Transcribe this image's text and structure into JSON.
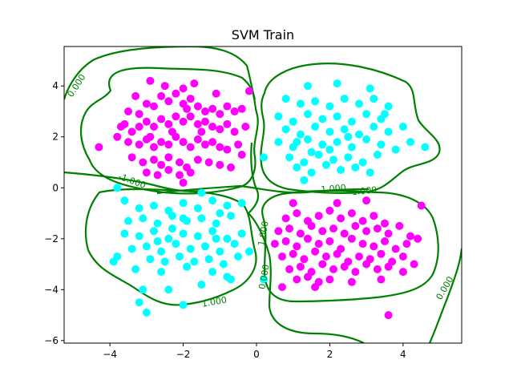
{
  "chart_data": {
    "type": "scatter",
    "title": "SVM Train",
    "xlabel": "",
    "ylabel": "",
    "xlim": [
      -5.25,
      5.6
    ],
    "ylim": [
      -6.1,
      5.55
    ],
    "xticks": [
      -4,
      -2,
      0,
      2,
      4
    ],
    "yticks": [
      -6,
      -4,
      -2,
      0,
      2,
      4
    ],
    "xtick_labels": [
      "−4",
      "−2",
      "0",
      "2",
      "4"
    ],
    "ytick_labels": [
      "−6",
      "−4",
      "−2",
      "0",
      "2",
      "4"
    ],
    "grid": false,
    "legend": "none",
    "colors": {
      "class_a": "#ff00ff",
      "class_b": "#00ffff",
      "contour": "#008000",
      "axes": "#000000"
    },
    "series": [
      {
        "color": "#ff00ff",
        "points": [
          [
            -3.5,
            3.0
          ],
          [
            -3.2,
            2.9
          ],
          [
            -3.0,
            3.3
          ],
          [
            -2.8,
            3.2
          ],
          [
            -2.6,
            3.6
          ],
          [
            -2.4,
            3.4
          ],
          [
            -2.2,
            3.7
          ],
          [
            -2.0,
            3.3
          ],
          [
            -1.8,
            3.5
          ],
          [
            -1.6,
            3.2
          ],
          [
            -1.4,
            3.0
          ],
          [
            -1.2,
            3.1
          ],
          [
            -1.0,
            2.9
          ],
          [
            -0.8,
            3.2
          ],
          [
            -0.6,
            3.0
          ],
          [
            -0.4,
            3.1
          ],
          [
            -0.2,
            3.8
          ],
          [
            -3.6,
            2.5
          ],
          [
            -3.4,
            2.2
          ],
          [
            -3.2,
            2.4
          ],
          [
            -3.0,
            2.6
          ],
          [
            -2.8,
            2.4
          ],
          [
            -2.6,
            2.7
          ],
          [
            -2.4,
            2.5
          ],
          [
            -2.2,
            2.8
          ],
          [
            -2.0,
            2.6
          ],
          [
            -1.8,
            2.8
          ],
          [
            -1.6,
            2.5
          ],
          [
            -1.4,
            2.6
          ],
          [
            -1.2,
            2.4
          ],
          [
            -1.0,
            2.3
          ],
          [
            -0.8,
            2.5
          ],
          [
            -0.6,
            2.2
          ],
          [
            -3.8,
            2.0
          ],
          [
            -3.5,
            1.8
          ],
          [
            -3.2,
            1.7
          ],
          [
            -3.0,
            1.9
          ],
          [
            -2.8,
            1.6
          ],
          [
            -2.6,
            1.8
          ],
          [
            -2.4,
            1.7
          ],
          [
            -2.2,
            2.0
          ],
          [
            -2.0,
            1.8
          ],
          [
            -1.8,
            1.6
          ],
          [
            -1.6,
            1.9
          ],
          [
            -1.4,
            1.7
          ],
          [
            -1.2,
            1.8
          ],
          [
            -1.0,
            1.6
          ],
          [
            -0.8,
            1.5
          ],
          [
            -0.5,
            1.7
          ],
          [
            -4.3,
            1.6
          ],
          [
            -3.4,
            1.2
          ],
          [
            -3.1,
            1.0
          ],
          [
            -2.8,
            1.1
          ],
          [
            -2.6,
            0.9
          ],
          [
            -2.4,
            1.2
          ],
          [
            -2.1,
            1.0
          ],
          [
            -1.9,
            0.8
          ],
          [
            -1.6,
            1.1
          ],
          [
            -1.3,
            1.0
          ],
          [
            -1.0,
            0.9
          ],
          [
            -0.7,
            0.8
          ],
          [
            -3.0,
            0.6
          ],
          [
            -2.7,
            0.5
          ],
          [
            -2.4,
            0.7
          ],
          [
            -2.1,
            0.5
          ],
          [
            -1.8,
            0.6
          ],
          [
            -2.5,
            4.0
          ],
          [
            -2.0,
            3.9
          ],
          [
            -1.7,
            4.1
          ],
          [
            -2.9,
            4.2
          ],
          [
            -3.3,
            3.6
          ],
          [
            -1.1,
            3.7
          ],
          [
            -0.4,
            1.3
          ],
          [
            -2.3,
            2.2
          ],
          [
            -1.5,
            2.2
          ],
          [
            -2.9,
            2.0
          ],
          [
            -3.7,
            2.4
          ],
          [
            -0.3,
            2.4
          ],
          [
            -2.0,
            0.2
          ],
          [
            -1.9,
            3.1
          ],
          [
            0.8,
            -1.2
          ],
          [
            1.1,
            -1.0
          ],
          [
            1.4,
            -1.3
          ],
          [
            1.7,
            -1.1
          ],
          [
            2.0,
            -0.9
          ],
          [
            2.3,
            -1.2
          ],
          [
            2.6,
            -1.0
          ],
          [
            2.9,
            -1.3
          ],
          [
            3.2,
            -1.1
          ],
          [
            3.5,
            -1.4
          ],
          [
            0.6,
            -1.7
          ],
          [
            0.9,
            -1.6
          ],
          [
            1.2,
            -1.8
          ],
          [
            1.5,
            -1.5
          ],
          [
            1.8,
            -1.7
          ],
          [
            2.1,
            -1.6
          ],
          [
            2.4,
            -1.8
          ],
          [
            2.7,
            -1.5
          ],
          [
            3.0,
            -1.7
          ],
          [
            3.3,
            -1.6
          ],
          [
            3.6,
            -1.8
          ],
          [
            3.9,
            -1.5
          ],
          [
            4.2,
            -1.9
          ],
          [
            4.5,
            -0.7
          ],
          [
            0.5,
            -2.2
          ],
          [
            0.8,
            -2.1
          ],
          [
            1.1,
            -2.3
          ],
          [
            1.4,
            -2.0
          ],
          [
            1.7,
            -2.2
          ],
          [
            2.0,
            -2.1
          ],
          [
            2.3,
            -2.4
          ],
          [
            2.6,
            -2.0
          ],
          [
            2.9,
            -2.2
          ],
          [
            3.2,
            -2.3
          ],
          [
            3.5,
            -2.1
          ],
          [
            3.8,
            -2.4
          ],
          [
            4.1,
            -2.2
          ],
          [
            4.4,
            -2.0
          ],
          [
            0.7,
            -2.7
          ],
          [
            1.0,
            -2.6
          ],
          [
            1.3,
            -2.8
          ],
          [
            1.6,
            -2.5
          ],
          [
            1.9,
            -2.7
          ],
          [
            2.2,
            -2.6
          ],
          [
            2.5,
            -2.9
          ],
          [
            2.8,
            -2.7
          ],
          [
            3.1,
            -2.8
          ],
          [
            3.4,
            -2.6
          ],
          [
            3.7,
            -2.9
          ],
          [
            4.0,
            -2.7
          ],
          [
            4.3,
            -3.0
          ],
          [
            0.9,
            -3.2
          ],
          [
            1.2,
            -3.1
          ],
          [
            1.5,
            -3.3
          ],
          [
            1.8,
            -3.0
          ],
          [
            2.1,
            -3.2
          ],
          [
            2.4,
            -3.1
          ],
          [
            2.7,
            -3.3
          ],
          [
            3.0,
            -3.0
          ],
          [
            3.3,
            -3.2
          ],
          [
            3.6,
            -3.1
          ],
          [
            4.0,
            -3.3
          ],
          [
            1.1,
            -3.6
          ],
          [
            1.4,
            -3.5
          ],
          [
            1.7,
            -3.7
          ],
          [
            2.0,
            -3.6
          ],
          [
            2.6,
            -3.7
          ],
          [
            3.4,
            -3.6
          ],
          [
            0.7,
            -3.9
          ],
          [
            1.6,
            -3.9
          ],
          [
            3.6,
            -5.0
          ],
          [
            2.2,
            -0.6
          ],
          [
            3.0,
            -0.5
          ],
          [
            1.0,
            -0.6
          ]
        ]
      },
      {
        "color": "#00ffff",
        "points": [
          [
            1.4,
            4.0
          ],
          [
            2.2,
            4.1
          ],
          [
            3.1,
            3.9
          ],
          [
            0.8,
            3.5
          ],
          [
            1.2,
            3.3
          ],
          [
            1.6,
            3.4
          ],
          [
            2.0,
            3.2
          ],
          [
            2.4,
            3.5
          ],
          [
            2.8,
            3.3
          ],
          [
            3.2,
            3.5
          ],
          [
            3.6,
            3.2
          ],
          [
            0.6,
            2.8
          ],
          [
            1.0,
            2.6
          ],
          [
            1.4,
            2.9
          ],
          [
            1.8,
            2.7
          ],
          [
            2.2,
            2.8
          ],
          [
            2.6,
            2.6
          ],
          [
            3.0,
            2.9
          ],
          [
            3.4,
            2.7
          ],
          [
            0.8,
            2.3
          ],
          [
            1.2,
            2.1
          ],
          [
            1.6,
            2.4
          ],
          [
            2.0,
            2.2
          ],
          [
            2.4,
            2.3
          ],
          [
            2.8,
            2.1
          ],
          [
            3.2,
            2.4
          ],
          [
            3.6,
            2.2
          ],
          [
            0.6,
            1.8
          ],
          [
            1.0,
            1.6
          ],
          [
            1.4,
            1.9
          ],
          [
            1.8,
            1.7
          ],
          [
            2.2,
            1.8
          ],
          [
            2.6,
            1.6
          ],
          [
            3.0,
            1.9
          ],
          [
            3.4,
            1.7
          ],
          [
            3.8,
            1.5
          ],
          [
            0.9,
            1.2
          ],
          [
            1.3,
            1.0
          ],
          [
            1.7,
            1.3
          ],
          [
            2.1,
            1.1
          ],
          [
            2.5,
            1.2
          ],
          [
            2.9,
            1.0
          ],
          [
            3.3,
            1.3
          ],
          [
            1.1,
            0.8
          ],
          [
            1.5,
            0.6
          ],
          [
            1.9,
            0.9
          ],
          [
            2.3,
            0.7
          ],
          [
            2.7,
            0.8
          ],
          [
            3.1,
            0.6
          ],
          [
            1.3,
            0.3
          ],
          [
            0.2,
            1.2
          ],
          [
            4.2,
            1.8
          ],
          [
            4.6,
            1.6
          ],
          [
            4.0,
            2.4
          ],
          [
            3.5,
            2.9
          ],
          [
            1.5,
            1.4
          ],
          [
            2.0,
            1.5
          ],
          [
            1.1,
            1.8
          ],
          [
            2.5,
            2.0
          ],
          [
            -3.8,
            0.0
          ],
          [
            -3.6,
            -0.5
          ],
          [
            -3.2,
            -0.8
          ],
          [
            -2.8,
            -0.7
          ],
          [
            -2.4,
            -0.9
          ],
          [
            -2.0,
            -0.6
          ],
          [
            -1.6,
            -0.8
          ],
          [
            -1.2,
            -0.5
          ],
          [
            -0.8,
            -0.7
          ],
          [
            -0.4,
            -0.6
          ],
          [
            -3.5,
            -1.3
          ],
          [
            -3.1,
            -1.2
          ],
          [
            -2.7,
            -1.4
          ],
          [
            -2.3,
            -1.1
          ],
          [
            -1.9,
            -1.3
          ],
          [
            -1.5,
            -1.2
          ],
          [
            -1.1,
            -1.4
          ],
          [
            -0.7,
            -1.1
          ],
          [
            -3.6,
            -1.8
          ],
          [
            -3.2,
            -1.9
          ],
          [
            -2.8,
            -1.7
          ],
          [
            -2.4,
            -2.0
          ],
          [
            -2.0,
            -1.8
          ],
          [
            -1.6,
            -1.9
          ],
          [
            -1.2,
            -1.7
          ],
          [
            -0.8,
            -2.0
          ],
          [
            -0.4,
            -1.8
          ],
          [
            -3.4,
            -2.4
          ],
          [
            -3.0,
            -2.3
          ],
          [
            -2.6,
            -2.5
          ],
          [
            -2.2,
            -2.2
          ],
          [
            -1.8,
            -2.4
          ],
          [
            -1.4,
            -2.3
          ],
          [
            -1.0,
            -2.5
          ],
          [
            -0.6,
            -2.2
          ],
          [
            -3.8,
            -2.7
          ],
          [
            -2.9,
            -2.8
          ],
          [
            -2.5,
            -2.9
          ],
          [
            -2.1,
            -2.7
          ],
          [
            -1.7,
            -2.9
          ],
          [
            -1.3,
            -2.8
          ],
          [
            -0.9,
            -3.0
          ],
          [
            -0.5,
            -2.7
          ],
          [
            -3.3,
            -3.2
          ],
          [
            -2.6,
            -3.3
          ],
          [
            -1.9,
            -3.1
          ],
          [
            -1.2,
            -3.3
          ],
          [
            -0.8,
            -3.5
          ],
          [
            -3.1,
            -4.0
          ],
          [
            -2.0,
            -4.6
          ],
          [
            -3.2,
            -4.5
          ],
          [
            -2.4,
            -4.0
          ],
          [
            -1.5,
            -3.8
          ],
          [
            -0.2,
            -2.5
          ],
          [
            -3.9,
            -2.9
          ],
          [
            -2.0,
            -1.2
          ],
          [
            -1.5,
            -0.2
          ],
          [
            -0.7,
            -3.6
          ],
          [
            -2.7,
            -2.1
          ],
          [
            -1.0,
            -1.0
          ],
          [
            -3.0,
            -4.9
          ],
          [
            0.2,
            -3.6
          ],
          [
            -2.3,
            -1.6
          ],
          [
            -1.1,
            -2.0
          ]
        ]
      }
    ],
    "contour_labels": [
      {
        "text": "0.000",
        "x": -4.9,
        "y": 4.0,
        "angle": -57
      },
      {
        "text": "-1.000",
        "x": -3.4,
        "y": 0.25,
        "angle": 20
      },
      {
        "text": "1.000",
        "x": 2.1,
        "y": -0.05,
        "angle": -5
      },
      {
        "text": "-1.000",
        "x": 2.9,
        "y": -0.15,
        "angle": -5
      },
      {
        "text": "1.000",
        "x": -1.15,
        "y": -4.5,
        "angle": -10
      },
      {
        "text": "1.000",
        "x": 0.2,
        "y": -1.8,
        "angle": -80
      },
      {
        "text": "0.000",
        "x": 0.22,
        "y": -3.5,
        "angle": -80
      },
      {
        "text": "0.000",
        "x": 5.15,
        "y": -3.95,
        "angle": -60
      }
    ]
  }
}
